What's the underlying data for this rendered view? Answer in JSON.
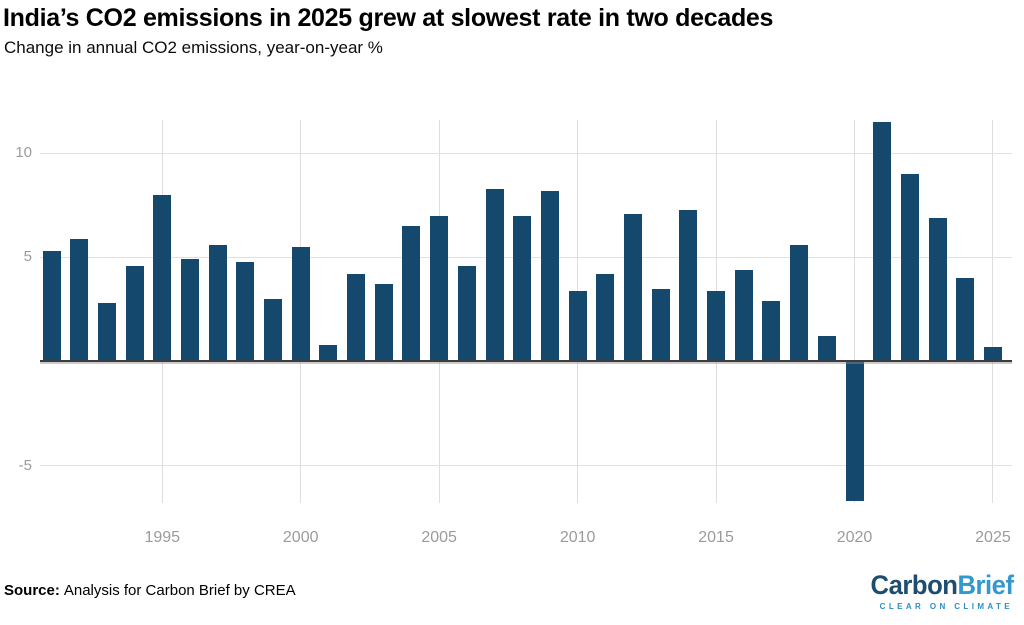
{
  "header": {
    "title": "India’s CO2 emissions in 2025 grew at slowest rate in two decades",
    "subtitle": "Change in annual CO2 emissions, year-on-year %"
  },
  "chart_data": {
    "type": "bar",
    "title": "India’s CO2 emissions in 2025 grew at slowest rate in two decades",
    "subtitle": "Change in annual CO2 emissions, year-on-year %",
    "unit": "%",
    "x": [
      1991,
      1992,
      1993,
      1994,
      1995,
      1996,
      1997,
      1998,
      1999,
      2000,
      2001,
      2002,
      2003,
      2004,
      2005,
      2006,
      2007,
      2008,
      2009,
      2010,
      2011,
      2012,
      2013,
      2014,
      2015,
      2016,
      2017,
      2018,
      2019,
      2020,
      2021,
      2022,
      2023,
      2024,
      2025
    ],
    "values": [
      5.3,
      5.9,
      2.8,
      4.6,
      8.0,
      4.9,
      5.6,
      4.8,
      3.0,
      5.5,
      0.8,
      4.2,
      3.7,
      6.5,
      7.0,
      4.6,
      8.3,
      7.0,
      8.2,
      3.4,
      4.2,
      7.1,
      3.5,
      7.3,
      3.4,
      4.4,
      2.9,
      5.6,
      1.2,
      -6.7,
      11.5,
      9.0,
      6.9,
      4.0,
      0.7
    ],
    "xticks": [
      1995,
      2000,
      2005,
      2010,
      2015,
      2020,
      2025
    ],
    "yticks": [
      10,
      5,
      -5
    ],
    "ylim": [
      -6.8,
      11.6
    ],
    "grid": true,
    "legend": "none",
    "bar_color": "#14496d"
  },
  "footer": {
    "source_label": "Source:",
    "source_text": "Analysis for Carbon Brief by CREA",
    "logo": {
      "part1": "Carbon",
      "part2": "Brief",
      "tagline": "CLEAR ON CLIMATE"
    }
  },
  "colors": {
    "bar": "#14496d",
    "gridline": "#e0e0e0",
    "zero_axis": "#3c3c3c",
    "tick_label": "#9b9b9b",
    "logo_dark_blue": "#1d4e70",
    "logo_light_blue": "#3398cc"
  }
}
